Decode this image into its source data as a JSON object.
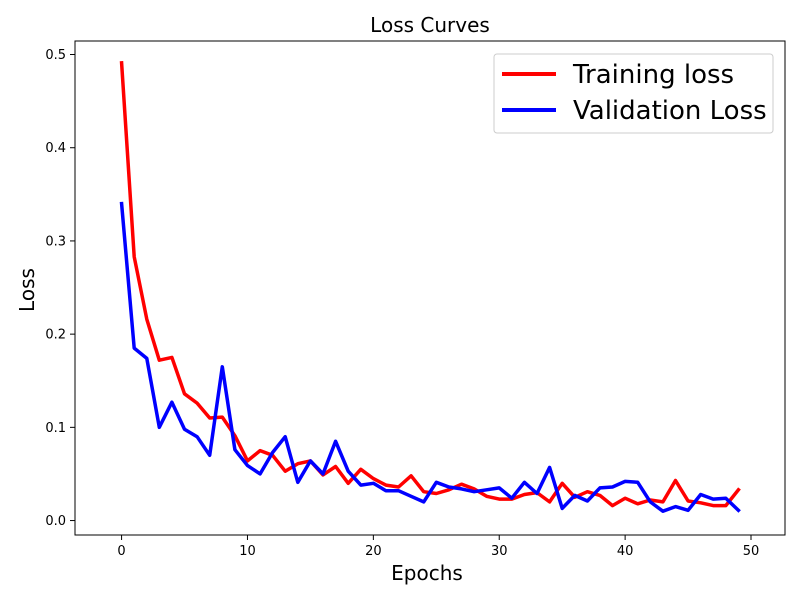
{
  "chart_data": {
    "type": "line",
    "title": "Loss Curves",
    "xlabel": "Epochs",
    "ylabel": "Loss",
    "xlim": [
      -3.7,
      52.7
    ],
    "ylim": [
      -0.0155,
      0.5145
    ],
    "xticks": [
      0,
      10,
      20,
      30,
      40,
      50
    ],
    "yticks": [
      0.0,
      0.1,
      0.2,
      0.3,
      0.4,
      0.5
    ],
    "ytick_labels": [
      "0.0",
      "0.1",
      "0.2",
      "0.3",
      "0.4",
      "0.5"
    ],
    "grid": false,
    "legend_position": "top-right",
    "x": [
      0,
      1,
      2,
      3,
      4,
      5,
      6,
      7,
      8,
      9,
      10,
      11,
      12,
      13,
      14,
      15,
      16,
      17,
      18,
      19,
      20,
      21,
      22,
      23,
      24,
      25,
      26,
      27,
      28,
      29,
      30,
      31,
      32,
      33,
      34,
      35,
      36,
      37,
      38,
      39,
      40,
      41,
      42,
      43,
      44,
      45,
      46,
      47,
      48,
      49
    ],
    "series": [
      {
        "name": "Training loss",
        "color": "#ff0000",
        "values": [
          0.491,
          0.283,
          0.216,
          0.172,
          0.175,
          0.136,
          0.126,
          0.11,
          0.111,
          0.091,
          0.064,
          0.075,
          0.07,
          0.053,
          0.061,
          0.064,
          0.049,
          0.058,
          0.04,
          0.055,
          0.045,
          0.038,
          0.036,
          0.048,
          0.031,
          0.029,
          0.033,
          0.039,
          0.034,
          0.026,
          0.023,
          0.023,
          0.028,
          0.03,
          0.02,
          0.04,
          0.025,
          0.031,
          0.027,
          0.016,
          0.024,
          0.018,
          0.022,
          0.02,
          0.043,
          0.021,
          0.019,
          0.016,
          0.016,
          0.033
        ]
      },
      {
        "name": "Validation Loss",
        "color": "#0000ff",
        "values": [
          0.34,
          0.185,
          0.174,
          0.1,
          0.127,
          0.098,
          0.09,
          0.07,
          0.165,
          0.076,
          0.059,
          0.05,
          0.073,
          0.09,
          0.041,
          0.064,
          0.05,
          0.085,
          0.053,
          0.038,
          0.04,
          0.032,
          0.032,
          0.026,
          0.02,
          0.041,
          0.036,
          0.034,
          0.031,
          0.033,
          0.035,
          0.024,
          0.041,
          0.029,
          0.057,
          0.013,
          0.027,
          0.021,
          0.035,
          0.036,
          0.042,
          0.041,
          0.02,
          0.01,
          0.015,
          0.011,
          0.028,
          0.023,
          0.024,
          0.011
        ]
      }
    ]
  }
}
